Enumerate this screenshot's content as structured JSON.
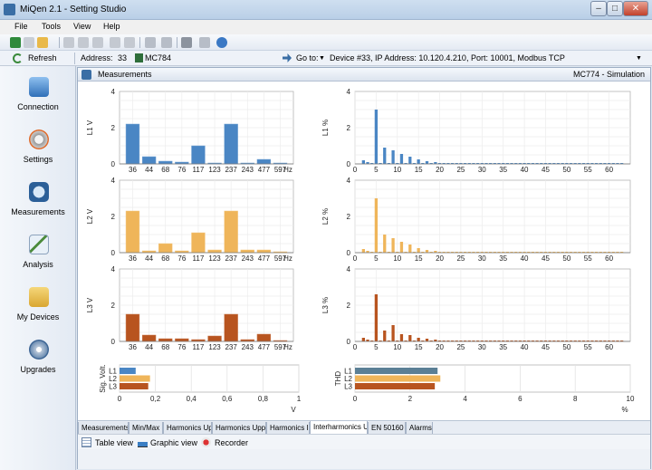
{
  "window": {
    "title": "MiQen 2.1 - Setting Studio"
  },
  "menu": {
    "items": [
      "File",
      "Tools",
      "View",
      "Help"
    ]
  },
  "addressbar": {
    "refresh_label": "Refresh",
    "address_label": "Address:",
    "address_value": "33",
    "device_model": "MC784",
    "goto_label": "Go to:",
    "device_info": "Device #33, IP Address: 10.120.4.210, Port: 10001, Modbus TCP"
  },
  "sidebar": {
    "items": [
      {
        "label": "Connection",
        "icon": "computer-icon"
      },
      {
        "label": "Settings",
        "icon": "gears-icon"
      },
      {
        "label": "Measurements",
        "icon": "gauge-icon"
      },
      {
        "label": "Analysis",
        "icon": "chart-icon"
      },
      {
        "label": "My Devices",
        "icon": "folder-icon"
      },
      {
        "label": "Upgrades",
        "icon": "disc-icon"
      }
    ]
  },
  "panel": {
    "title": "Measurements",
    "right_title": "MC774 - Simulation"
  },
  "colors": {
    "L1": "#4a86c4",
    "L2": "#efb55a",
    "L3": "#b8541f"
  },
  "chart_data": [
    {
      "type": "bar",
      "ylabel": "L1   V",
      "xunit": "Hz",
      "categories": [
        "36",
        "44",
        "68",
        "76",
        "117",
        "123",
        "237",
        "243",
        "477",
        "597"
      ],
      "values": [
        2.2,
        0.4,
        0.15,
        0.1,
        1.0,
        0.05,
        2.2,
        0.05,
        0.25,
        0.05
      ],
      "ylim": [
        0,
        4
      ],
      "yticks": [
        "0",
        "2",
        "4"
      ],
      "color": "#4a86c4"
    },
    {
      "type": "bar",
      "ylabel": "L2   V",
      "xunit": "Hz",
      "categories": [
        "36",
        "44",
        "68",
        "76",
        "117",
        "123",
        "237",
        "243",
        "477",
        "597"
      ],
      "values": [
        2.3,
        0.1,
        0.5,
        0.1,
        1.1,
        0.15,
        2.3,
        0.15,
        0.15,
        0.05
      ],
      "ylim": [
        0,
        4
      ],
      "yticks": [
        "0",
        "2",
        "4"
      ],
      "color": "#efb55a"
    },
    {
      "type": "bar",
      "ylabel": "L3   V",
      "xunit": "Hz",
      "categories": [
        "36",
        "44",
        "68",
        "76",
        "117",
        "123",
        "237",
        "243",
        "477",
        "597"
      ],
      "values": [
        1.5,
        0.35,
        0.15,
        0.15,
        0.1,
        0.3,
        1.5,
        0.1,
        0.4,
        0.05
      ],
      "ylim": [
        0,
        4
      ],
      "yticks": [
        "0",
        "2",
        "4"
      ],
      "color": "#b8541f"
    },
    {
      "type": "bar",
      "ylabel": "L1   %",
      "xunit": "",
      "x": [
        2,
        3,
        4,
        5,
        6,
        7,
        8,
        9,
        10,
        11,
        12,
        13,
        14,
        15,
        16,
        17,
        18,
        19,
        20,
        21,
        22,
        23,
        24,
        25,
        26,
        27,
        28,
        29,
        30,
        31,
        32,
        33,
        34,
        35,
        36,
        37,
        38,
        39,
        40,
        41,
        42,
        43,
        44,
        45,
        46,
        47,
        48,
        49,
        50,
        51,
        52,
        53,
        54,
        55,
        56,
        57,
        58,
        59,
        60,
        61,
        62,
        63
      ],
      "values": [
        0.2,
        0.1,
        0.05,
        3.0,
        0.05,
        0.9,
        0.05,
        0.75,
        0.05,
        0.55,
        0.05,
        0.4,
        0.05,
        0.25,
        0.05,
        0.15,
        0.05,
        0.1,
        0.05,
        0.05,
        0.05,
        0.05,
        0.05,
        0.05,
        0.05,
        0.05,
        0.05,
        0.05,
        0.05,
        0.05,
        0.05,
        0.05,
        0.05,
        0.05,
        0.05,
        0.05,
        0.05,
        0.05,
        0.05,
        0.05,
        0.05,
        0.05,
        0.05,
        0.05,
        0.05,
        0.05,
        0.05,
        0.05,
        0.05,
        0.05,
        0.05,
        0.05,
        0.05,
        0.05,
        0.05,
        0.05,
        0.05,
        0.05,
        0.05,
        0.05,
        0.05,
        0.05
      ],
      "xlim": [
        0,
        65
      ],
      "ylim": [
        0,
        4
      ],
      "yticks": [
        "0",
        "2",
        "4"
      ],
      "xticks": [
        0,
        5,
        10,
        15,
        20,
        25,
        30,
        35,
        40,
        45,
        50,
        55,
        60
      ],
      "color": "#4a86c4"
    },
    {
      "type": "bar",
      "ylabel": "L2   %",
      "xunit": "",
      "x": [
        2,
        3,
        4,
        5,
        6,
        7,
        8,
        9,
        10,
        11,
        12,
        13,
        14,
        15,
        16,
        17,
        18,
        19,
        20,
        21,
        22,
        23,
        24,
        25,
        26,
        27,
        28,
        29,
        30,
        31,
        32,
        33,
        34,
        35,
        36,
        37,
        38,
        39,
        40,
        41,
        42,
        43,
        44,
        45,
        46,
        47,
        48,
        49,
        50,
        51,
        52,
        53,
        54,
        55,
        56,
        57,
        58,
        59,
        60,
        61,
        62,
        63
      ],
      "values": [
        0.2,
        0.1,
        0.05,
        3.0,
        0.05,
        1.0,
        0.05,
        0.8,
        0.05,
        0.6,
        0.05,
        0.45,
        0.05,
        0.25,
        0.05,
        0.15,
        0.05,
        0.1,
        0.05,
        0.05,
        0.05,
        0.05,
        0.05,
        0.05,
        0.05,
        0.05,
        0.05,
        0.05,
        0.05,
        0.05,
        0.05,
        0.05,
        0.05,
        0.05,
        0.05,
        0.05,
        0.05,
        0.05,
        0.05,
        0.05,
        0.05,
        0.05,
        0.05,
        0.05,
        0.05,
        0.05,
        0.05,
        0.05,
        0.05,
        0.05,
        0.05,
        0.05,
        0.05,
        0.05,
        0.05,
        0.05,
        0.05,
        0.05,
        0.05,
        0.05,
        0.05,
        0.05
      ],
      "xlim": [
        0,
        65
      ],
      "ylim": [
        0,
        4
      ],
      "yticks": [
        "0",
        "2",
        "4"
      ],
      "xticks": [
        0,
        5,
        10,
        15,
        20,
        25,
        30,
        35,
        40,
        45,
        50,
        55,
        60
      ],
      "color": "#efb55a"
    },
    {
      "type": "bar",
      "ylabel": "L3   %",
      "xunit": "",
      "x": [
        2,
        3,
        4,
        5,
        6,
        7,
        8,
        9,
        10,
        11,
        12,
        13,
        14,
        15,
        16,
        17,
        18,
        19,
        20,
        21,
        22,
        23,
        24,
        25,
        26,
        27,
        28,
        29,
        30,
        31,
        32,
        33,
        34,
        35,
        36,
        37,
        38,
        39,
        40,
        41,
        42,
        43,
        44,
        45,
        46,
        47,
        48,
        49,
        50,
        51,
        52,
        53,
        54,
        55,
        56,
        57,
        58,
        59,
        60,
        61,
        62,
        63
      ],
      "values": [
        0.2,
        0.1,
        0.05,
        2.6,
        0.05,
        0.6,
        0.05,
        0.9,
        0.05,
        0.4,
        0.05,
        0.35,
        0.05,
        0.2,
        0.05,
        0.15,
        0.05,
        0.1,
        0.05,
        0.05,
        0.05,
        0.05,
        0.05,
        0.05,
        0.05,
        0.05,
        0.05,
        0.05,
        0.05,
        0.05,
        0.05,
        0.05,
        0.05,
        0.05,
        0.05,
        0.05,
        0.05,
        0.05,
        0.05,
        0.05,
        0.05,
        0.05,
        0.05,
        0.05,
        0.05,
        0.05,
        0.05,
        0.05,
        0.05,
        0.05,
        0.05,
        0.05,
        0.05,
        0.05,
        0.05,
        0.05,
        0.05,
        0.05,
        0.05,
        0.05,
        0.05,
        0.05
      ],
      "xlim": [
        0,
        65
      ],
      "ylim": [
        0,
        4
      ],
      "yticks": [
        "0",
        "2",
        "4"
      ],
      "xticks": [
        0,
        5,
        10,
        15,
        20,
        25,
        30,
        35,
        40,
        45,
        50,
        55,
        60
      ],
      "color": "#b8541f"
    },
    {
      "type": "bar",
      "orientation": "horizontal",
      "ylabel": "Sig. Volt.",
      "xunit": "V",
      "categories": [
        "L1",
        "L2",
        "L3"
      ],
      "values": [
        0.09,
        0.17,
        0.16
      ],
      "xlim": [
        0,
        1
      ],
      "xticks": [
        "0",
        "0,2",
        "0,4",
        "0,6",
        "0,8",
        "1"
      ],
      "colors": [
        "#4a86c4",
        "#efb55a",
        "#b8541f"
      ]
    },
    {
      "type": "bar",
      "orientation": "horizontal",
      "ylabel": "THD",
      "xunit": "%",
      "categories": [
        "L1",
        "L2",
        "L3"
      ],
      "values": [
        3.0,
        3.1,
        2.9
      ],
      "xlim": [
        0,
        10
      ],
      "xticks": [
        "0",
        "2",
        "4",
        "6",
        "8",
        "10"
      ],
      "colors": [
        "#5b7f95",
        "#efb55a",
        "#b8541f"
      ]
    }
  ],
  "tabs": [
    {
      "label": "Measurements",
      "active": false
    },
    {
      "label": "Min/Max",
      "active": false
    },
    {
      "label": "Harmonics Up",
      "active": false
    },
    {
      "label": "Harmonics Upp",
      "active": false
    },
    {
      "label": "Harmonics I",
      "active": false
    },
    {
      "label": "Interharmonics U",
      "active": true
    },
    {
      "label": "EN 50160",
      "active": false
    },
    {
      "label": "Alarms",
      "active": false
    }
  ],
  "views": {
    "table_view": "Table view",
    "graphic_view": "Graphic view",
    "recorder": "Recorder"
  }
}
